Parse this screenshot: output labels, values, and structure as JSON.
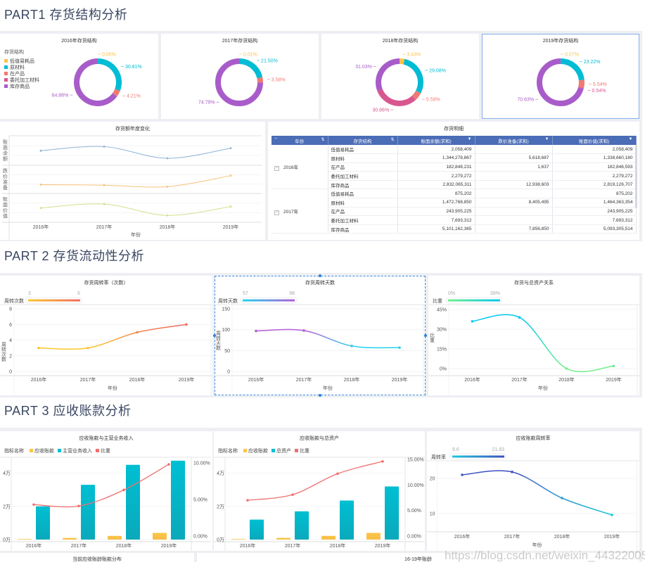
{
  "sections": [
    {
      "title": "PART1 存货结构分析"
    },
    {
      "title": "PART 2 存货流动性分析"
    },
    {
      "title": "PART 3 应收账款分析"
    }
  ],
  "colors": {
    "categories": [
      "#f9c24c",
      "#00bcd4",
      "#f07a72",
      "#d9578f",
      "#a85cc9"
    ],
    "accent": "#4b6cb6"
  },
  "inventory_detail": {
    "title": "存货明细",
    "headers": [
      "年份",
      "存货结构",
      "账面余额(求和)",
      "跌价准备(求和)",
      "账面价值(求和)"
    ],
    "groups": [
      {
        "year": "2016年",
        "rows": [
          [
            "低值易耗品",
            "2,058,409",
            "",
            "2,058,409"
          ],
          [
            "原材料",
            "1,344,278,867",
            "5,618,687",
            "1,338,660,180"
          ],
          [
            "在产品",
            "182,848,231",
            "1,637",
            "182,846,593"
          ],
          [
            "委托加工材料",
            "2,279,272",
            "",
            "2,279,272"
          ],
          [
            "库存商品",
            "2,832,065,311",
            "12,938,603",
            "2,819,126,707"
          ]
        ]
      },
      {
        "year": "2017年",
        "rows": [
          [
            "低值易耗品",
            "875,202",
            "",
            "875,202"
          ],
          [
            "原材料",
            "1,472,768,850",
            "8,405,495",
            "1,464,363,354"
          ],
          [
            "在产品",
            "243,905,225",
            "",
            "243,905,225"
          ],
          [
            "委托加工材料",
            "7,693,312",
            "",
            "7,693,312"
          ],
          [
            "库存商品",
            "5,101,162,365",
            "7,856,850",
            "5,093,305,514"
          ]
        ]
      }
    ]
  },
  "bottom": {
    "left_title": "当前应收账龄账款分布",
    "right_title": "16-19年账龄"
  },
  "watermark": "https://blog.csdn.net/weixin_44322005",
  "chart_data": [
    {
      "type": "pie",
      "title": "2016年存货结构",
      "legend_title": "存货结构",
      "categories": [
        "低值易耗品",
        "原材料",
        "在产品",
        "委托加工材料",
        "库存商品"
      ],
      "values": [
        0.05,
        30.81,
        4.21,
        null,
        64.88
      ],
      "unit": "%"
    },
    {
      "type": "pie",
      "title": "2017年存货结构",
      "categories": [
        "低值易耗品",
        "原材料",
        "在产品",
        "委托加工材料",
        "库存商品"
      ],
      "values": [
        0.01,
        21.5,
        3.58,
        null,
        74.79
      ],
      "unit": "%"
    },
    {
      "type": "pie",
      "title": "2018年存货结构",
      "categories": [
        "低值易耗品",
        "原材料",
        "在产品",
        "委托加工材料",
        "库存商品"
      ],
      "values": [
        3.43,
        29.08,
        5.59,
        30.86,
        31.03
      ],
      "unit": "%"
    },
    {
      "type": "pie",
      "title": "2019年存货结构",
      "categories": [
        "低值易耗品",
        "原材料",
        "在产品",
        "委托加工材料",
        "库存商品"
      ],
      "values": [
        0.07,
        23.22,
        5.54,
        0.54,
        70.63
      ],
      "unit": "%"
    },
    {
      "type": "line",
      "title": "存货额年度变化",
      "categories": [
        "2016年",
        "2017年",
        "2018年",
        "2019年"
      ],
      "xlabel": "年份",
      "series": [
        {
          "name": "账面余额",
          "values": [
            60,
            68,
            45,
            65
          ],
          "color": "#8fb3d6"
        },
        {
          "name": "跌价准备",
          "values": [
            20,
            19,
            16,
            38
          ],
          "color": "#f8c27a"
        },
        {
          "name": "账面价值",
          "values": [
            55,
            63,
            40,
            58
          ],
          "color": "#d6df8a"
        }
      ]
    },
    {
      "type": "line",
      "title": "存货周转率（次数）",
      "categories": [
        "2016年",
        "2017年",
        "2018年",
        "2019年"
      ],
      "xlabel": "年份",
      "ylabel": "周转次数",
      "yticks": [
        0,
        2,
        4,
        6,
        8
      ],
      "series": [
        {
          "name": "周转次数",
          "values": [
            3,
            3,
            5,
            6
          ]
        }
      ],
      "visual_map": {
        "min": 3,
        "max": 6,
        "colors": [
          "#fcc62d",
          "#f06a5f"
        ]
      }
    },
    {
      "type": "line",
      "title": "存货周转天数",
      "categories": [
        "2016年",
        "2017年",
        "2018年",
        "2019年"
      ],
      "xlabel": "年份",
      "ylabel": "周转天数",
      "yticks": [
        0,
        50,
        100,
        150
      ],
      "series": [
        {
          "name": "周转天数",
          "values": [
            97,
            98,
            61,
            57
          ]
        }
      ],
      "visual_map": {
        "min": 57,
        "max": 98,
        "colors": [
          "#1fd3ef",
          "#b35cd6"
        ]
      }
    },
    {
      "type": "line",
      "title": "存货与总资产关系",
      "categories": [
        "2016年",
        "2017年",
        "2018年",
        "2019年"
      ],
      "xlabel": "年份",
      "ylabel": "比重",
      "yticks": [
        0,
        15,
        30,
        45
      ],
      "unit": "%",
      "series": [
        {
          "name": "比重",
          "values": [
            36,
            39,
            0,
            2
          ]
        }
      ],
      "visual_map": {
        "min": "0%",
        "max": "39%",
        "colors": [
          "#6ff08a",
          "#00c6f0"
        ]
      }
    },
    {
      "type": "bar",
      "title": "应收账款与主营业务收入",
      "legend_title": "指标名称",
      "categories": [
        "2016年",
        "2017年",
        "2018年",
        "2019年"
      ],
      "yticks_left": [
        0,
        2,
        4
      ],
      "left_unit": "万",
      "yticks_right": [
        0,
        5,
        10
      ],
      "right_unit": "%",
      "series": [
        {
          "name": "应收账款",
          "kind": "bar",
          "values": [
            0.03,
            0.1,
            0.22,
            0.4
          ],
          "color": "#fcc548"
        },
        {
          "name": "主营业务收入",
          "kind": "bar",
          "values": [
            2.0,
            3.3,
            4.5,
            4.75
          ],
          "color": "#00bfd3"
        },
        {
          "name": "比重",
          "kind": "line",
          "axis": "right",
          "values": [
            4.3,
            4.1,
            6.3,
            9.8
          ],
          "color": "#f07070"
        }
      ]
    },
    {
      "type": "bar",
      "title": "应收账款与总资产",
      "legend_title": "指标名称",
      "categories": [
        "2016年",
        "2017年",
        "2018年",
        "2019年"
      ],
      "yticks_left": [
        0,
        2,
        4
      ],
      "left_unit": "万",
      "yticks_right": [
        0,
        5,
        10,
        15
      ],
      "right_unit": "%",
      "series": [
        {
          "name": "应收账款",
          "kind": "bar",
          "values": [
            0.03,
            0.1,
            0.22,
            0.4
          ],
          "color": "#fcc548"
        },
        {
          "name": "总资产",
          "kind": "bar",
          "values": [
            1.2,
            1.7,
            2.35,
            3.2
          ],
          "color": "#00bfd3"
        },
        {
          "name": "比重",
          "kind": "line",
          "axis": "right",
          "values": [
            7.0,
            8.1,
            12.2,
            14.6
          ],
          "color": "#f07070"
        }
      ]
    },
    {
      "type": "line",
      "title": "应收账款周转率",
      "categories": [
        "2016年",
        "2017年",
        "2018年",
        "2019年"
      ],
      "xlabel": "年份",
      "yticks": [
        10,
        20
      ],
      "series": [
        {
          "name": "周转率",
          "values": [
            21.0,
            21.83,
            14.4,
            9.6
          ]
        }
      ],
      "visual_map": {
        "min": 9.6,
        "max": 21.83,
        "colors": [
          "#1ec8dc",
          "#3f4fbf"
        ]
      }
    }
  ]
}
